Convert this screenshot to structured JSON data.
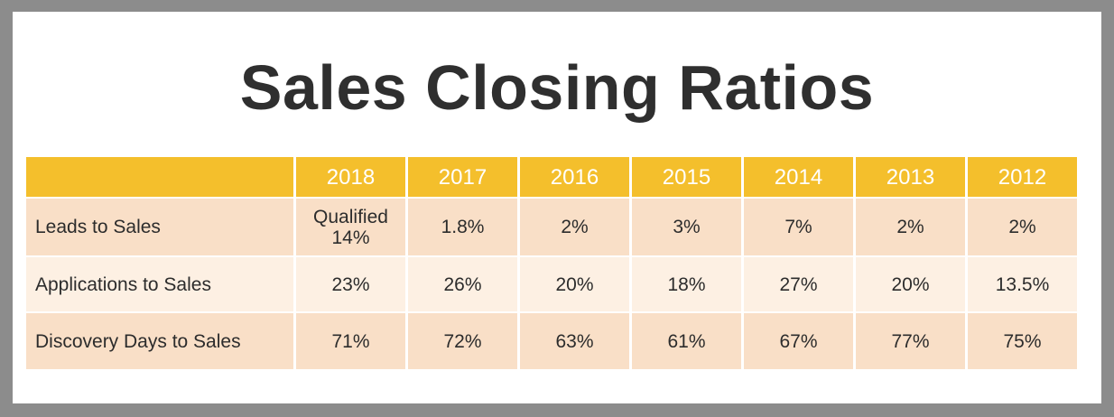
{
  "chart_data": {
    "type": "table",
    "title": "Sales Closing Ratios",
    "columns": [
      "2018",
      "2017",
      "2016",
      "2015",
      "2014",
      "2013",
      "2012"
    ],
    "rows": [
      {
        "label": "Leads to Sales",
        "values": [
          "Qualified\n14%",
          "1.8%",
          "2%",
          "3%",
          "7%",
          "2%",
          "2%"
        ]
      },
      {
        "label": "Applications to Sales",
        "values": [
          "23%",
          "26%",
          "20%",
          "18%",
          "27%",
          "20%",
          "13.5%"
        ]
      },
      {
        "label": "Discovery Days to Sales",
        "values": [
          "71%",
          "72%",
          "63%",
          "61%",
          "67%",
          "77%",
          "75%"
        ]
      }
    ]
  },
  "colors": {
    "header_bg": "#f4bf2c",
    "row_dark": "#f9dfc7",
    "row_light": "#fdf0e3",
    "title_text": "#2f2f2f"
  }
}
